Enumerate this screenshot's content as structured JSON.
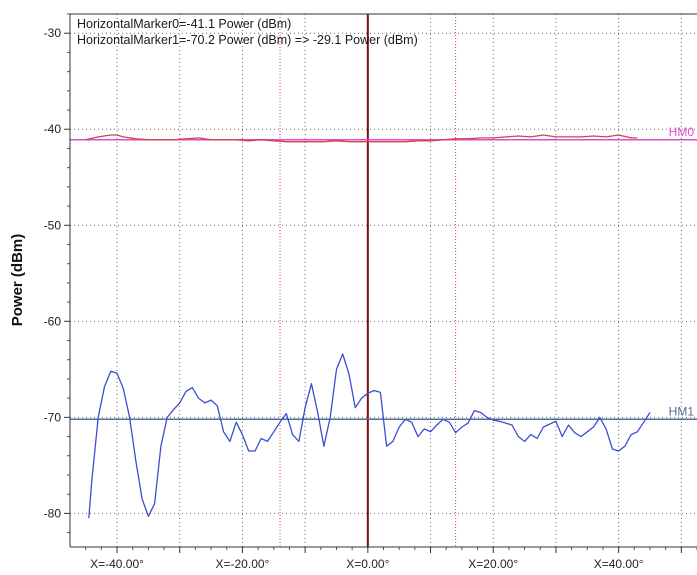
{
  "chart_data": {
    "type": "line",
    "title": "",
    "xlabel": "",
    "ylabel": "Power (dBm)",
    "xlim": [
      -47.5,
      52.5
    ],
    "ylim": [
      -83.5,
      -28
    ],
    "grid": true,
    "x_tick_values": [
      -40,
      -30,
      -20,
      -10,
      0,
      10,
      20,
      30,
      40,
      50
    ],
    "x_tick_labels": [
      "X=-40.00°",
      "",
      "X=-20.00°",
      "",
      "X=0.00°",
      "",
      "X=20.00°",
      "",
      "X=40.00°",
      ""
    ],
    "y_ticks": [
      -30,
      -40,
      -50,
      -60,
      -70,
      -80
    ],
    "y_tick_labels": [
      "-30",
      "-40",
      "-50",
      "-60",
      "-70",
      "-80"
    ],
    "annotations": [
      "HorizontalMarker0=-41.1 Power (dBm)",
      "HorizontalMarker1=-70.2 Power (dBm) => -29.1 Power (dBm)"
    ],
    "horizontal_markers": [
      {
        "label": "HM0",
        "value": -41.1,
        "color": "#d94fd0"
      },
      {
        "label": "HM1",
        "value": -70.2,
        "color": "#4a6f96"
      }
    ],
    "vertical_markers": [
      {
        "value": 0,
        "style": "solid",
        "color": "#7a0e0e"
      },
      {
        "value": -14,
        "style": "dotted",
        "color": "#d05050"
      },
      {
        "value": 14,
        "style": "dotted",
        "color": "#d05050"
      }
    ],
    "series": [
      {
        "color": "#d6404a",
        "x": [
          -45,
          -43,
          -41,
          -40,
          -39,
          -37,
          -35,
          -33,
          -31,
          -29,
          -27,
          -25,
          -23,
          -21,
          -19,
          -17,
          -15,
          -13,
          -11,
          -9,
          -7,
          -5,
          -3,
          -1,
          0,
          2,
          4,
          6,
          8,
          10,
          12,
          14,
          16,
          18,
          20,
          22,
          24,
          26,
          28,
          30,
          32,
          34,
          36,
          38,
          40,
          42,
          43
        ],
        "y": [
          -41.1,
          -40.8,
          -40.6,
          -40.6,
          -40.8,
          -41.0,
          -41.1,
          -41.1,
          -41.1,
          -41.0,
          -40.9,
          -41.1,
          -41.1,
          -41.1,
          -41.2,
          -41.1,
          -41.2,
          -41.3,
          -41.3,
          -41.3,
          -41.3,
          -41.2,
          -41.3,
          -41.3,
          -41.3,
          -41.3,
          -41.3,
          -41.3,
          -41.2,
          -41.2,
          -41.1,
          -41.0,
          -41.0,
          -40.9,
          -40.9,
          -40.8,
          -40.7,
          -40.8,
          -40.6,
          -40.8,
          -40.8,
          -40.8,
          -40.7,
          -40.8,
          -40.6,
          -40.9,
          -40.9
        ]
      },
      {
        "color": "#3a4fd0",
        "x": [
          -44.5,
          -44,
          -43,
          -42,
          -41,
          -40,
          -39,
          -38,
          -37,
          -36,
          -35,
          -34,
          -33,
          -32,
          -31,
          -30,
          -29,
          -28,
          -27,
          -26,
          -25,
          -24,
          -23,
          -22,
          -21,
          -20,
          -19,
          -18,
          -17,
          -16,
          -15,
          -14,
          -13,
          -12,
          -11,
          -10,
          -9,
          -8,
          -7,
          -6,
          -5,
          -4,
          -3,
          -2,
          -1,
          0,
          1,
          2,
          3,
          4,
          5,
          6,
          7,
          8,
          9,
          10,
          11,
          12,
          13,
          14,
          15,
          16,
          17,
          18,
          19,
          20,
          21,
          22,
          23,
          24,
          25,
          26,
          27,
          28,
          29,
          30,
          31,
          32,
          33,
          34,
          35,
          36,
          37,
          38,
          39,
          40,
          41,
          42,
          43,
          44,
          45
        ],
        "y": [
          -80.5,
          -76.5,
          -70.0,
          -66.8,
          -65.2,
          -65.4,
          -67.0,
          -70.0,
          -74.5,
          -78.5,
          -80.3,
          -79.0,
          -73.0,
          -70.0,
          -69.2,
          -68.5,
          -67.3,
          -66.9,
          -68.0,
          -68.5,
          -68.2,
          -68.8,
          -71.5,
          -72.5,
          -70.5,
          -71.8,
          -73.5,
          -73.5,
          -72.2,
          -72.5,
          -71.5,
          -70.5,
          -69.6,
          -71.8,
          -72.5,
          -69.0,
          -66.5,
          -69.5,
          -73.0,
          -70.0,
          -65.0,
          -63.4,
          -65.5,
          -69.0,
          -68.0,
          -67.5,
          -67.2,
          -67.4,
          -73.0,
          -72.5,
          -71.0,
          -70.2,
          -70.5,
          -72.0,
          -71.2,
          -71.5,
          -70.8,
          -70.2,
          -70.5,
          -71.6,
          -71.0,
          -70.6,
          -69.3,
          -69.5,
          -70.0,
          -70.3,
          -70.4,
          -70.6,
          -70.8,
          -72.0,
          -72.5,
          -71.8,
          -72.2,
          -71.0,
          -70.7,
          -70.4,
          -72.0,
          -70.8,
          -71.6,
          -72.0,
          -71.5,
          -71.0,
          -70.0,
          -71.2,
          -73.3,
          -73.5,
          -73.0,
          -71.8,
          -71.5,
          -70.5,
          -69.5
        ]
      }
    ]
  }
}
